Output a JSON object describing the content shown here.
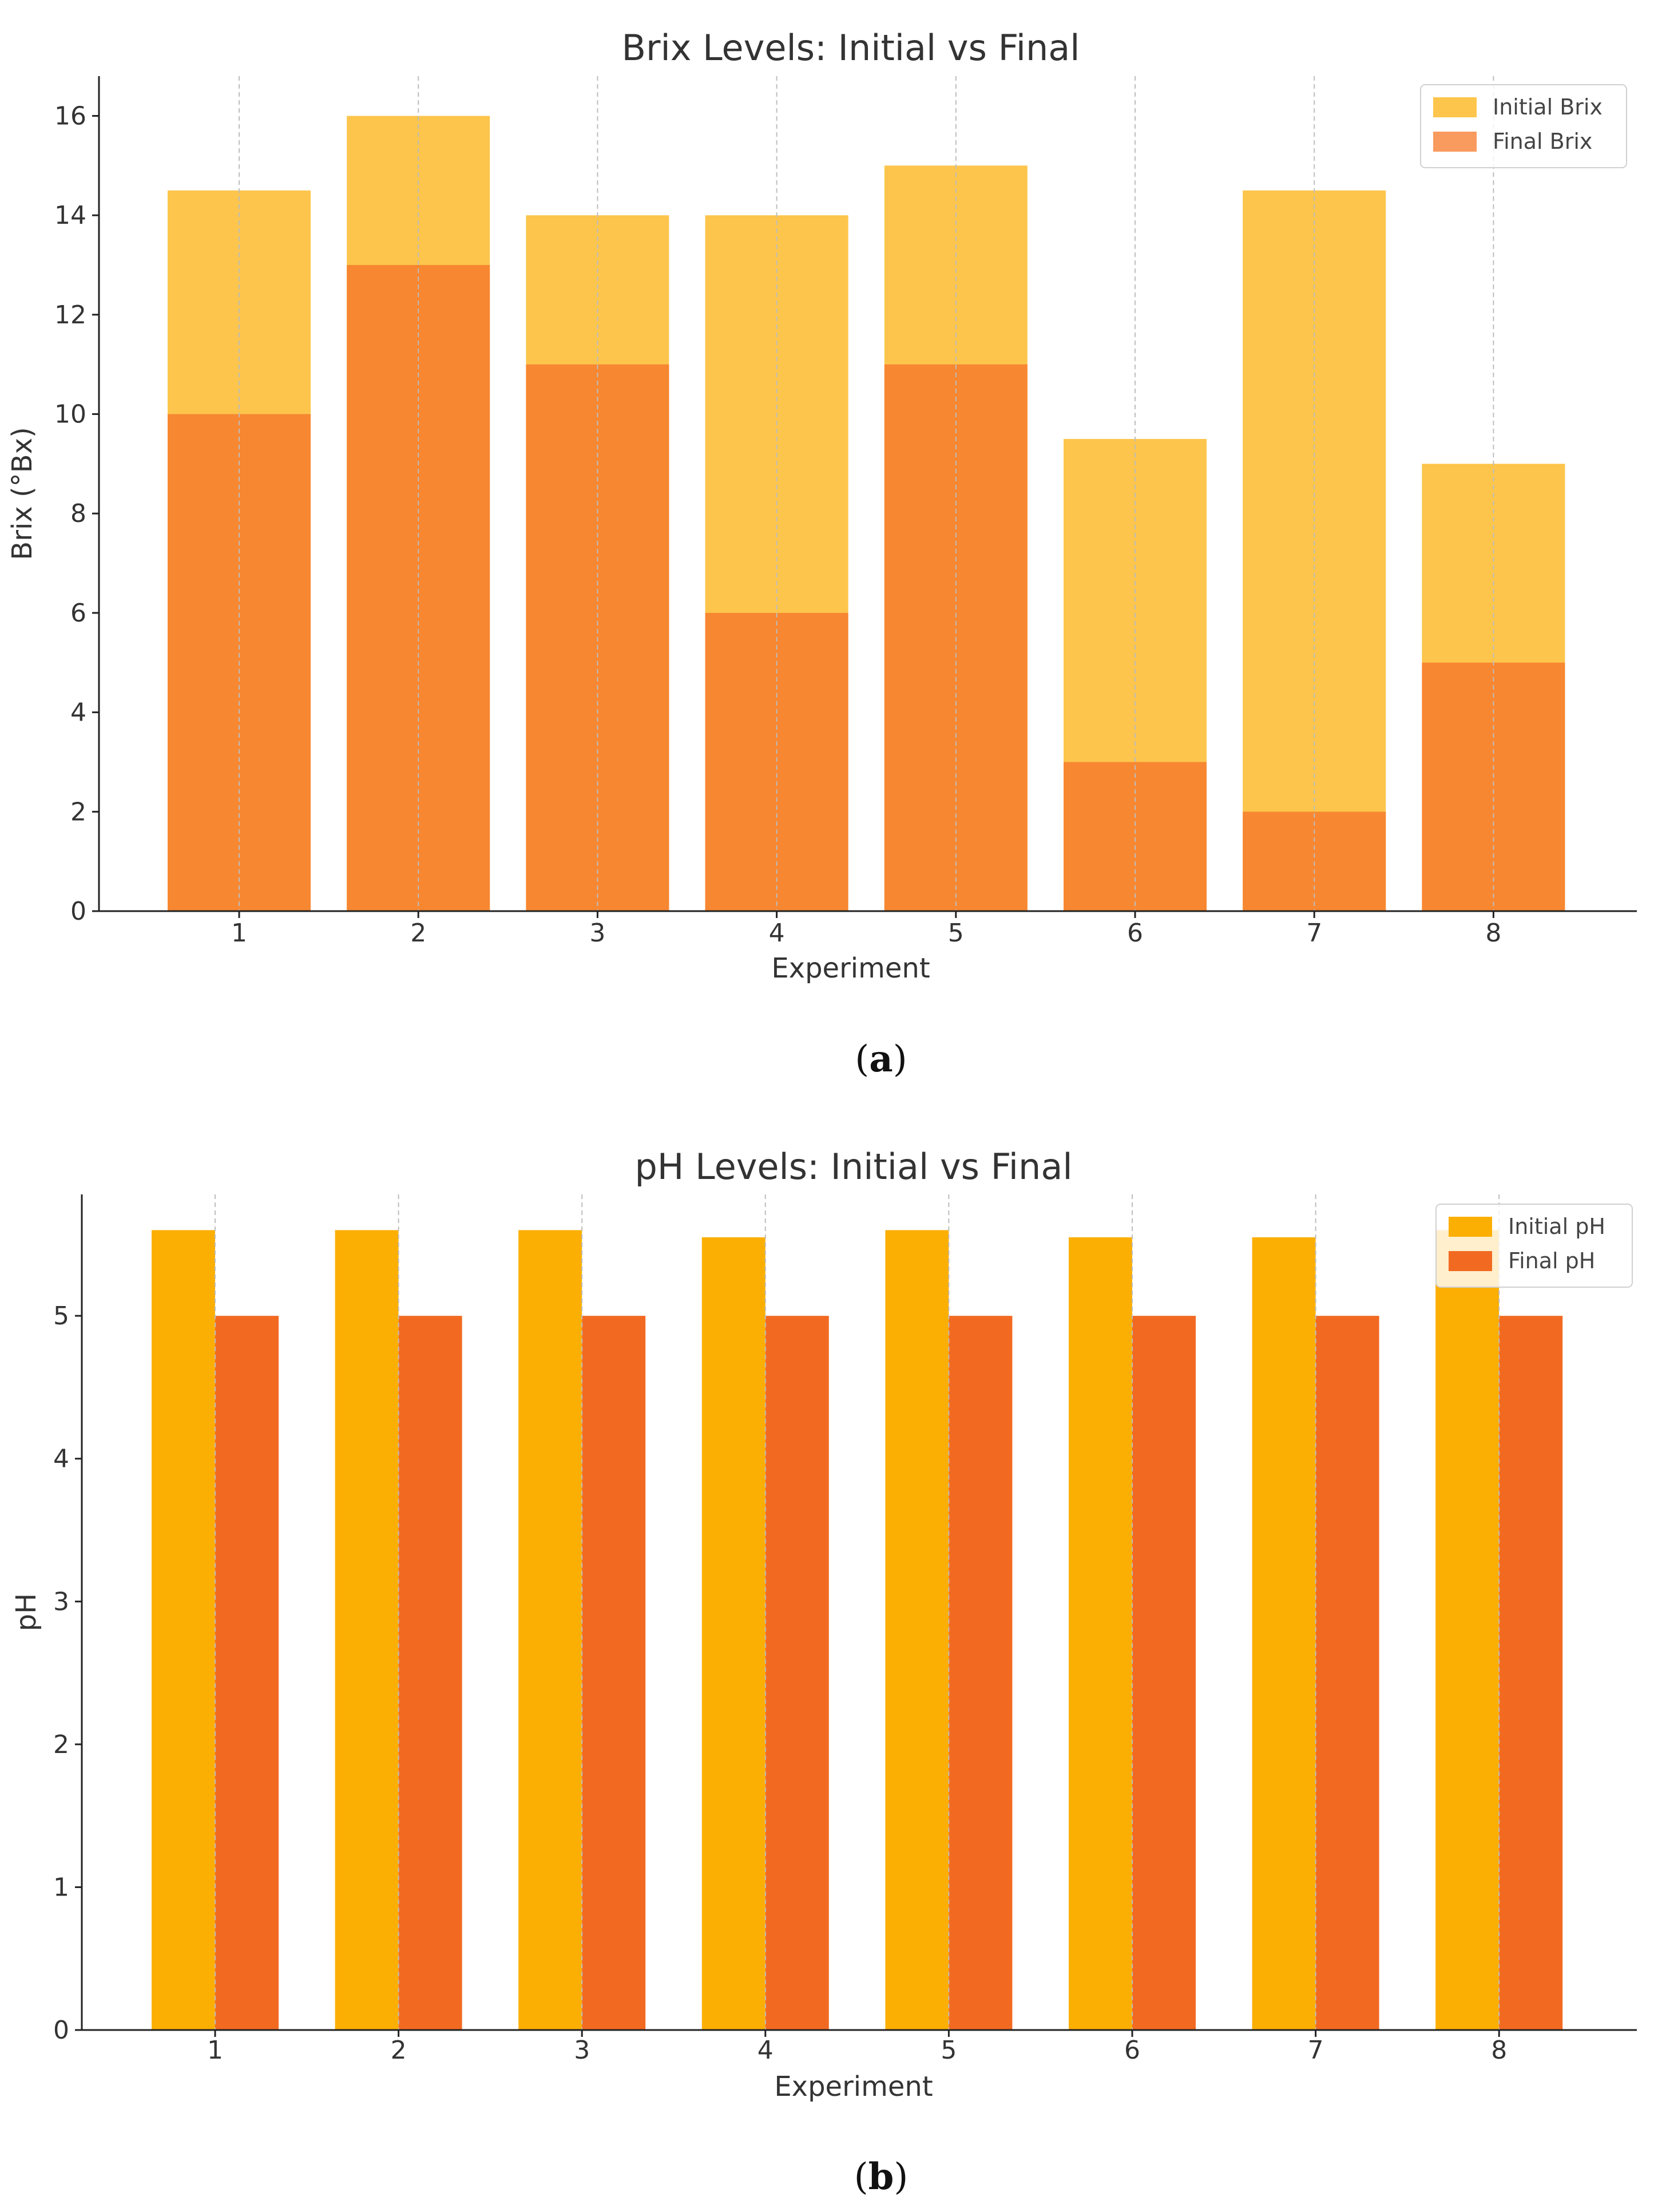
{
  "chart_data": [
    {
      "type": "bar",
      "layout": "overlaid",
      "title": "Brix Levels: Initial vs Final",
      "xlabel": "Experiment",
      "ylabel": "Brix (°Bx)",
      "categories": [
        "1",
        "2",
        "3",
        "4",
        "5",
        "6",
        "7",
        "8"
      ],
      "series": [
        {
          "name": "Initial Brix",
          "values": [
            14.5,
            16,
            14,
            14,
            15,
            9.5,
            14.5,
            9
          ],
          "color": "#FDC54C",
          "legend_color": "#FDC54C"
        },
        {
          "name": "Final Brix",
          "values": [
            10,
            13,
            11,
            6,
            11,
            3,
            2,
            5
          ],
          "color": "#F78731",
          "legend_color": "#F99A5E"
        }
      ],
      "ylim": [
        0,
        16.8
      ],
      "yticks": [
        0,
        2,
        4,
        6,
        8,
        10,
        12,
        14,
        16
      ],
      "grid": "x-dashed",
      "legend": "top-right",
      "caption": {
        "open": "(",
        "letter": "a",
        "close": ")"
      }
    },
    {
      "type": "bar",
      "layout": "grouped",
      "title": "pH Levels: Initial vs Final",
      "xlabel": "Experiment",
      "ylabel": "pH",
      "categories": [
        "1",
        "2",
        "3",
        "4",
        "5",
        "6",
        "7",
        "8"
      ],
      "series": [
        {
          "name": "Initial pH",
          "values": [
            5.6,
            5.6,
            5.6,
            5.55,
            5.6,
            5.55,
            5.55,
            5.6
          ],
          "color": "#FCAF03",
          "legend_color": "#FCAF03"
        },
        {
          "name": "Final pH",
          "values": [
            5,
            5,
            5,
            5,
            5,
            5,
            5,
            5
          ],
          "color": "#F26A22",
          "legend_color": "#F26A22"
        }
      ],
      "ylim": [
        0,
        5.85
      ],
      "yticks": [
        0,
        1,
        2,
        3,
        4,
        5
      ],
      "grid": "x-dashed",
      "legend": "top-right",
      "caption": {
        "open": "(",
        "letter": "b",
        "close": ")"
      }
    }
  ]
}
